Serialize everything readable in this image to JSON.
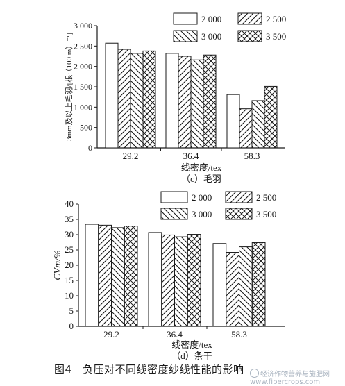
{
  "chart_data": [
    {
      "type": "bar",
      "panel_label": "（c）毛羽",
      "xlabel": "线密度/tex",
      "ylabel": "3mm及以上毛羽/[根·（100 m）⁻¹]",
      "categories": [
        "29.2",
        "36.4",
        "58.3"
      ],
      "yticks": [
        "0",
        "500",
        "1 000",
        "1 500",
        "2 000",
        "2 500",
        "3 000"
      ],
      "ylim": [
        0,
        3000
      ],
      "legend_position": "top-right",
      "series": [
        {
          "name": "2 000",
          "pattern": "blank",
          "values": [
            2570,
            2320,
            1310
          ]
        },
        {
          "name": "2 500",
          "pattern": "forward-hatch",
          "values": [
            2420,
            2250,
            960
          ]
        },
        {
          "name": "3 000",
          "pattern": "back-hatch",
          "values": [
            2320,
            2160,
            1160
          ]
        },
        {
          "name": "3 500",
          "pattern": "cross-hatch",
          "values": [
            2380,
            2280,
            1510
          ]
        }
      ]
    },
    {
      "type": "bar",
      "panel_label": "（d）条干",
      "xlabel": "线密度/tex",
      "ylabel": "CVm/%",
      "categories": [
        "29.2",
        "36.4",
        "58.3"
      ],
      "yticks": [
        "0",
        "5",
        "10",
        "15",
        "20",
        "25",
        "30",
        "35",
        "40"
      ],
      "ylim": [
        0,
        40
      ],
      "legend_position": "top-right",
      "series": [
        {
          "name": "2 000",
          "pattern": "blank",
          "values": [
            33.4,
            30.7,
            27.1
          ]
        },
        {
          "name": "2 500",
          "pattern": "forward-hatch",
          "values": [
            33.1,
            29.9,
            24.2
          ]
        },
        {
          "name": "3 000",
          "pattern": "back-hatch",
          "values": [
            32.3,
            29.3,
            26.0
          ]
        },
        {
          "name": "3 500",
          "pattern": "cross-hatch",
          "values": [
            32.8,
            30.1,
            27.4
          ]
        }
      ]
    }
  ],
  "caption": "图4　负压对不同线密度纱线性能的影响",
  "watermark": "经济作物营养与施肥网 www.fibercrops.com"
}
